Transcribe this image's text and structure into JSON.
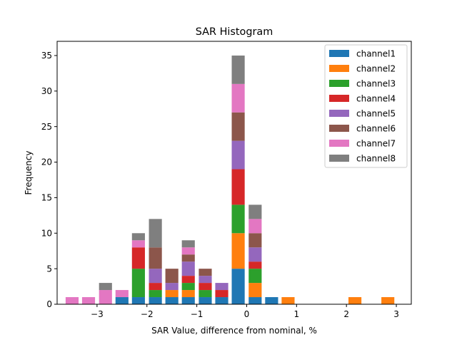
{
  "chart_data": {
    "type": "bar",
    "stacked": true,
    "title": "SAR Histogram",
    "xlabel": "SAR Value, difference from nominal, %",
    "ylabel": "Frequency",
    "xlim": [
      -3.8,
      3.3
    ],
    "ylim": [
      0,
      37
    ],
    "xticks": [
      -3,
      -2,
      -1,
      0,
      1,
      2,
      3
    ],
    "yticks": [
      0,
      5,
      10,
      15,
      20,
      25,
      30,
      35
    ],
    "bar_width": 0.26,
    "bin_centers": [
      -3.5,
      -3.17,
      -2.83,
      -2.5,
      -2.17,
      -1.83,
      -1.5,
      -1.17,
      -0.83,
      -0.5,
      -0.17,
      0.17,
      0.5,
      0.83,
      2.17,
      2.83
    ],
    "legend_position": "upper right",
    "series": [
      {
        "name": "channel1",
        "color": "#1f77b4",
        "values": [
          0,
          0,
          0,
          1,
          1,
          1,
          1,
          1,
          1,
          1,
          5,
          1,
          1,
          0,
          0,
          0
        ]
      },
      {
        "name": "channel2",
        "color": "#ff7f0e",
        "values": [
          0,
          0,
          0,
          0,
          0,
          0,
          1,
          1,
          0,
          0,
          5,
          2,
          0,
          1,
          1,
          1
        ]
      },
      {
        "name": "channel3",
        "color": "#2ca02c",
        "values": [
          0,
          0,
          0,
          0,
          4,
          1,
          0,
          1,
          1,
          0,
          4,
          2,
          0,
          0,
          0,
          0
        ]
      },
      {
        "name": "channel4",
        "color": "#d62728",
        "values": [
          0,
          0,
          0,
          0,
          3,
          1,
          0,
          1,
          1,
          1,
          5,
          1,
          0,
          0,
          0,
          0
        ]
      },
      {
        "name": "channel5",
        "color": "#9467bd",
        "values": [
          0,
          0,
          0,
          0,
          0,
          2,
          1,
          2,
          1,
          1,
          4,
          2,
          0,
          0,
          0,
          0
        ]
      },
      {
        "name": "channel6",
        "color": "#8c564b",
        "values": [
          0,
          0,
          0,
          0,
          0,
          3,
          2,
          1,
          1,
          0,
          4,
          2,
          0,
          0,
          0,
          0
        ]
      },
      {
        "name": "channel7",
        "color": "#e377c2",
        "values": [
          1,
          1,
          2,
          1,
          1,
          0,
          0,
          1,
          0,
          0,
          4,
          2,
          0,
          0,
          0,
          0
        ]
      },
      {
        "name": "channel8",
        "color": "#7f7f7f",
        "values": [
          0,
          0,
          1,
          0,
          1,
          4,
          0,
          1,
          0,
          0,
          4,
          2,
          0,
          0,
          0,
          0
        ]
      }
    ]
  }
}
